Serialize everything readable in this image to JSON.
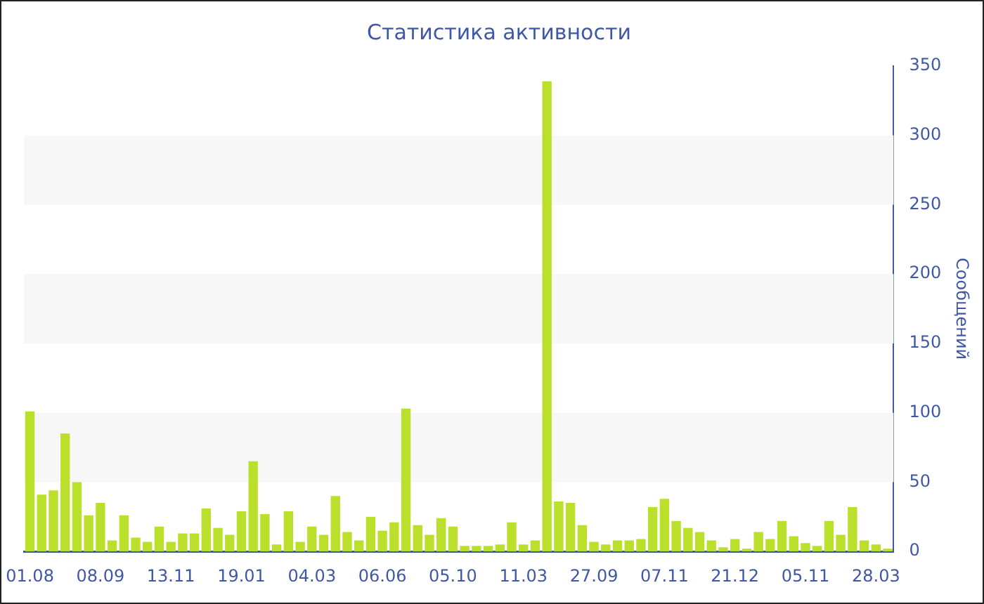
{
  "chart_data": {
    "type": "bar",
    "title": "Статистика активности",
    "ylabel": "Сообщений",
    "categories": [
      "01.08",
      null,
      null,
      null,
      null,
      null,
      "08.09",
      null,
      null,
      null,
      null,
      null,
      "13.11",
      null,
      null,
      null,
      null,
      null,
      "19.01",
      null,
      null,
      null,
      null,
      null,
      "04.03",
      null,
      null,
      null,
      null,
      null,
      "06.06",
      null,
      null,
      null,
      null,
      null,
      "05.10",
      null,
      null,
      null,
      null,
      null,
      "11.03",
      null,
      null,
      null,
      null,
      null,
      "27.09",
      null,
      null,
      null,
      null,
      null,
      "07.11",
      null,
      null,
      null,
      null,
      null,
      "21.12",
      null,
      null,
      null,
      null,
      null,
      "05.11",
      null,
      null,
      null,
      null,
      null,
      "28.03",
      null
    ],
    "values": [
      101,
      41,
      44,
      85,
      50,
      26,
      35,
      8,
      26,
      10,
      7,
      18,
      7,
      13,
      13,
      31,
      17,
      12,
      29,
      65,
      27,
      5,
      29,
      7,
      18,
      12,
      40,
      14,
      8,
      25,
      15,
      21,
      103,
      19,
      12,
      24,
      18,
      4,
      4,
      4,
      5,
      21,
      5,
      8,
      339,
      36,
      35,
      19,
      7,
      5,
      8,
      8,
      9,
      32,
      38,
      22,
      17,
      14,
      8,
      3,
      9,
      2,
      14,
      9,
      22,
      11,
      6,
      4,
      22,
      12,
      32,
      8,
      5,
      2
    ],
    "color": "#bbe02c",
    "ylim": [
      0,
      350
    ],
    "yticks": [
      0,
      50,
      100,
      150,
      200,
      250,
      300,
      350
    ],
    "bands": [
      {
        "axis": "y",
        "from": 50,
        "to": 100,
        "color": "#f7f7f7"
      },
      {
        "axis": "y",
        "from": 150,
        "to": 200,
        "color": "#f7f7f7"
      },
      {
        "axis": "y",
        "from": 250,
        "to": 300,
        "color": "#f7f7f7"
      }
    ]
  }
}
